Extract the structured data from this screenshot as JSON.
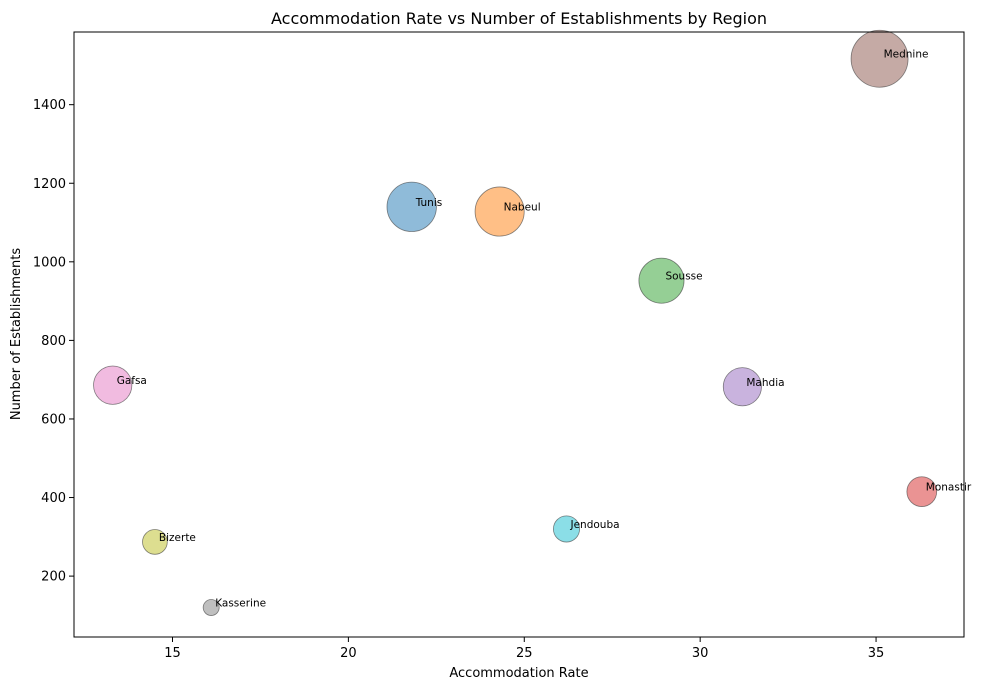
{
  "chart_data": {
    "type": "scatter",
    "title": "Accommodation Rate vs Number of Establishments by Region",
    "xlabel": "Accommodation Rate",
    "ylabel": "Number of Establishments",
    "xlim": [
      12.2,
      37.5
    ],
    "ylim": [
      45,
      1585
    ],
    "xticks": [
      15,
      20,
      25,
      30,
      35
    ],
    "yticks": [
      200,
      400,
      600,
      800,
      1000,
      1200,
      1400
    ],
    "grid": false,
    "bubble_size": "proportional to number of establishments",
    "points": [
      {
        "label": "Tunis",
        "x": 21.8,
        "y": 1140,
        "color": "#1f77b4"
      },
      {
        "label": "Nabeul",
        "x": 24.3,
        "y": 1128,
        "color": "#ff7f0e"
      },
      {
        "label": "Sousse",
        "x": 28.9,
        "y": 952,
        "color": "#2ca02c"
      },
      {
        "label": "Monastir",
        "x": 36.3,
        "y": 415,
        "color": "#d62728"
      },
      {
        "label": "Mahdia",
        "x": 31.2,
        "y": 682,
        "color": "#9467bd"
      },
      {
        "label": "Mednine",
        "x": 35.1,
        "y": 1517,
        "color": "#8c564b"
      },
      {
        "label": "Gafsa",
        "x": 13.3,
        "y": 686,
        "color": "#e377c2"
      },
      {
        "label": "Kasserine",
        "x": 16.1,
        "y": 120,
        "color": "#7f7f7f"
      },
      {
        "label": "Bizerte",
        "x": 14.5,
        "y": 287,
        "color": "#bcbd22"
      },
      {
        "label": "Jendouba",
        "x": 26.2,
        "y": 320,
        "color": "#17becf"
      }
    ]
  }
}
